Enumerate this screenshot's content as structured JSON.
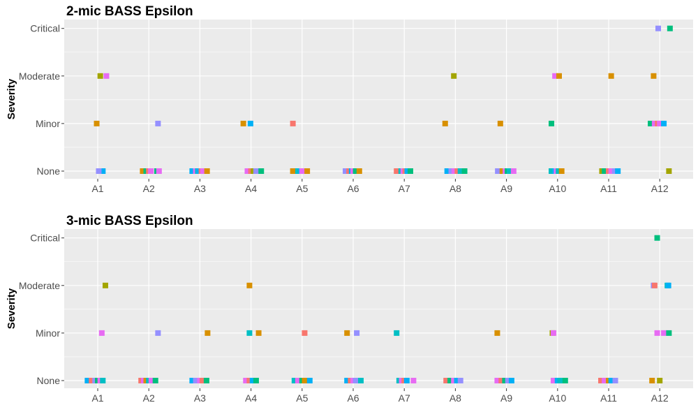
{
  "chart_data": [
    {
      "type": "scatter",
      "title": "2-mic BASS Epsilon",
      "xlabel": "",
      "ylabel": "Severity",
      "categories": [
        "A1",
        "A2",
        "A3",
        "A4",
        "A5",
        "A6",
        "A7",
        "A8",
        "A9",
        "A10",
        "A11",
        "A12"
      ],
      "levels": [
        "None",
        "Minor",
        "Moderate",
        "Critical"
      ],
      "grid": true,
      "points": [
        {
          "x": "A1",
          "y": "Moderate",
          "j": 0.05,
          "c": "#A3A500"
        },
        {
          "x": "A1",
          "y": "Moderate",
          "j": 0.17,
          "c": "#E76BF3"
        },
        {
          "x": "A1",
          "y": "Minor",
          "j": -0.02,
          "c": "#D89000"
        },
        {
          "x": "A1",
          "y": "None",
          "j": 0.04,
          "c": "#E76BF3"
        },
        {
          "x": "A1",
          "y": "None",
          "j": 0.1,
          "c": "#00B0F6"
        },
        {
          "x": "A1",
          "y": "None",
          "j": 0.02,
          "c": "#9590FF"
        },
        {
          "x": "A2",
          "y": "Minor",
          "j": 0.18,
          "c": "#9590FF"
        },
        {
          "x": "A2",
          "y": "None",
          "j": -0.12,
          "c": "#D89000"
        },
        {
          "x": "A2",
          "y": "None",
          "j": -0.05,
          "c": "#00BF7D"
        },
        {
          "x": "A2",
          "y": "None",
          "j": 0.0,
          "c": "#F8766D"
        },
        {
          "x": "A2",
          "y": "None",
          "j": 0.04,
          "c": "#E76BF3"
        },
        {
          "x": "A2",
          "y": "None",
          "j": 0.16,
          "c": "#00BF7D"
        },
        {
          "x": "A2",
          "y": "None",
          "j": 0.2,
          "c": "#E76BF3"
        },
        {
          "x": "A3",
          "y": "None",
          "j": -0.15,
          "c": "#00B0F6"
        },
        {
          "x": "A3",
          "y": "None",
          "j": -0.08,
          "c": "#E76BF3"
        },
        {
          "x": "A3",
          "y": "None",
          "j": -0.04,
          "c": "#00BFC4"
        },
        {
          "x": "A3",
          "y": "None",
          "j": -0.02,
          "c": "#00B0F6"
        },
        {
          "x": "A3",
          "y": "None",
          "j": 0.03,
          "c": "#F8766D"
        },
        {
          "x": "A3",
          "y": "None",
          "j": 0.06,
          "c": "#E76BF3"
        },
        {
          "x": "A3",
          "y": "None",
          "j": 0.14,
          "c": "#D89000"
        },
        {
          "x": "A4",
          "y": "Minor",
          "j": -0.15,
          "c": "#D89000"
        },
        {
          "x": "A4",
          "y": "Minor",
          "j": -0.01,
          "c": "#00B0F6"
        },
        {
          "x": "A4",
          "y": "None",
          "j": -0.07,
          "c": "#E76BF3"
        },
        {
          "x": "A4",
          "y": "None",
          "j": 0.0,
          "c": "#F8766D"
        },
        {
          "x": "A4",
          "y": "None",
          "j": 0.05,
          "c": "#A3A500"
        },
        {
          "x": "A4",
          "y": "None",
          "j": 0.1,
          "c": "#9590FF"
        },
        {
          "x": "A4",
          "y": "None",
          "j": 0.2,
          "c": "#00BF7D"
        },
        {
          "x": "A5",
          "y": "Minor",
          "j": -0.18,
          "c": "#F8766D"
        },
        {
          "x": "A5",
          "y": "None",
          "j": -0.18,
          "c": "#D89000"
        },
        {
          "x": "A5",
          "y": "None",
          "j": -0.08,
          "c": "#00BFC4"
        },
        {
          "x": "A5",
          "y": "None",
          "j": -0.02,
          "c": "#00B0F6"
        },
        {
          "x": "A5",
          "y": "None",
          "j": 0.0,
          "c": "#E76BF3"
        },
        {
          "x": "A5",
          "y": "None",
          "j": 0.1,
          "c": "#D89000"
        },
        {
          "x": "A6",
          "y": "None",
          "j": -0.15,
          "c": "#9590FF"
        },
        {
          "x": "A6",
          "y": "None",
          "j": -0.08,
          "c": "#F8766D"
        },
        {
          "x": "A6",
          "y": "None",
          "j": -0.03,
          "c": "#00B0F6"
        },
        {
          "x": "A6",
          "y": "None",
          "j": 0.0,
          "c": "#E76BF3"
        },
        {
          "x": "A6",
          "y": "None",
          "j": 0.05,
          "c": "#00BF7D"
        },
        {
          "x": "A6",
          "y": "None",
          "j": 0.12,
          "c": "#D89000"
        },
        {
          "x": "A7",
          "y": "None",
          "j": -0.15,
          "c": "#F8766D"
        },
        {
          "x": "A7",
          "y": "None",
          "j": -0.06,
          "c": "#00BFC4"
        },
        {
          "x": "A7",
          "y": "None",
          "j": -0.02,
          "c": "#E76BF3"
        },
        {
          "x": "A7",
          "y": "None",
          "j": 0.02,
          "c": "#F8766D"
        },
        {
          "x": "A7",
          "y": "None",
          "j": 0.06,
          "c": "#00B0F6"
        },
        {
          "x": "A7",
          "y": "None",
          "j": 0.12,
          "c": "#00BF7D"
        },
        {
          "x": "A8",
          "y": "Moderate",
          "j": -0.03,
          "c": "#A3A500"
        },
        {
          "x": "A8",
          "y": "Minor",
          "j": -0.2,
          "c": "#D89000"
        },
        {
          "x": "A8",
          "y": "None",
          "j": -0.16,
          "c": "#00B0F6"
        },
        {
          "x": "A8",
          "y": "None",
          "j": -0.08,
          "c": "#9590FF"
        },
        {
          "x": "A8",
          "y": "None",
          "j": -0.02,
          "c": "#E76BF3"
        },
        {
          "x": "A8",
          "y": "None",
          "j": 0.04,
          "c": "#F8766D"
        },
        {
          "x": "A8",
          "y": "None",
          "j": 0.1,
          "c": "#00BFC4"
        },
        {
          "x": "A8",
          "y": "None",
          "j": 0.18,
          "c": "#00BF7D"
        },
        {
          "x": "A9",
          "y": "Minor",
          "j": -0.12,
          "c": "#D89000"
        },
        {
          "x": "A9",
          "y": "None",
          "j": -0.17,
          "c": "#9590FF"
        },
        {
          "x": "A9",
          "y": "None",
          "j": -0.08,
          "c": "#D89000"
        },
        {
          "x": "A9",
          "y": "None",
          "j": -0.02,
          "c": "#E76BF3"
        },
        {
          "x": "A9",
          "y": "None",
          "j": 0.02,
          "c": "#00BF7D"
        },
        {
          "x": "A9",
          "y": "None",
          "j": 0.06,
          "c": "#00BFC4"
        },
        {
          "x": "A9",
          "y": "None",
          "j": 0.14,
          "c": "#E76BF3"
        },
        {
          "x": "A10",
          "y": "Moderate",
          "j": -0.05,
          "c": "#E76BF3"
        },
        {
          "x": "A10",
          "y": "Moderate",
          "j": 0.03,
          "c": "#D89000"
        },
        {
          "x": "A10",
          "y": "Minor",
          "j": -0.12,
          "c": "#00BF7D"
        },
        {
          "x": "A10",
          "y": "None",
          "j": -0.12,
          "c": "#00BFC4"
        },
        {
          "x": "A10",
          "y": "None",
          "j": -0.05,
          "c": "#00B0F6"
        },
        {
          "x": "A10",
          "y": "None",
          "j": -0.02,
          "c": "#E76BF3"
        },
        {
          "x": "A10",
          "y": "None",
          "j": 0.02,
          "c": "#00BFC4"
        },
        {
          "x": "A10",
          "y": "None",
          "j": 0.08,
          "c": "#D89000"
        },
        {
          "x": "A11",
          "y": "Moderate",
          "j": 0.05,
          "c": "#D89000"
        },
        {
          "x": "A11",
          "y": "None",
          "j": -0.13,
          "c": "#A3A500"
        },
        {
          "x": "A11",
          "y": "None",
          "j": -0.08,
          "c": "#00BF7D"
        },
        {
          "x": "A11",
          "y": "None",
          "j": 0.0,
          "c": "#F8766D"
        },
        {
          "x": "A11",
          "y": "None",
          "j": 0.05,
          "c": "#E76BF3"
        },
        {
          "x": "A11",
          "y": "None",
          "j": 0.12,
          "c": "#9590FF"
        },
        {
          "x": "A11",
          "y": "None",
          "j": 0.18,
          "c": "#00B0F6"
        },
        {
          "x": "A12",
          "y": "Critical",
          "j": -0.03,
          "c": "#9590FF"
        },
        {
          "x": "A12",
          "y": "Critical",
          "j": 0.2,
          "c": "#00BF7D"
        },
        {
          "x": "A12",
          "y": "Moderate",
          "j": -0.12,
          "c": "#D89000"
        },
        {
          "x": "A12",
          "y": "Minor",
          "j": -0.18,
          "c": "#00BF7D"
        },
        {
          "x": "A12",
          "y": "Minor",
          "j": -0.1,
          "c": "#E76BF3"
        },
        {
          "x": "A12",
          "y": "Minor",
          "j": -0.04,
          "c": "#F8766D"
        },
        {
          "x": "A12",
          "y": "Minor",
          "j": 0.0,
          "c": "#E76BF3"
        },
        {
          "x": "A12",
          "y": "Minor",
          "j": 0.08,
          "c": "#00B0F6"
        },
        {
          "x": "A12",
          "y": "None",
          "j": 0.18,
          "c": "#A3A500"
        }
      ]
    },
    {
      "type": "scatter",
      "title": "3-mic BASS Epsilon",
      "xlabel": "",
      "ylabel": "Severity",
      "categories": [
        "A1",
        "A2",
        "A3",
        "A4",
        "A5",
        "A6",
        "A7",
        "A8",
        "A9",
        "A10",
        "A11",
        "A12"
      ],
      "levels": [
        "None",
        "Minor",
        "Moderate",
        "Critical"
      ],
      "grid": true,
      "points": [
        {
          "x": "A1",
          "y": "Moderate",
          "j": 0.15,
          "c": "#A3A500"
        },
        {
          "x": "A1",
          "y": "Minor",
          "j": 0.08,
          "c": "#E76BF3"
        },
        {
          "x": "A1",
          "y": "None",
          "j": -0.2,
          "c": "#00B0F6"
        },
        {
          "x": "A1",
          "y": "None",
          "j": -0.12,
          "c": "#F8766D"
        },
        {
          "x": "A1",
          "y": "None",
          "j": -0.05,
          "c": "#9590FF"
        },
        {
          "x": "A1",
          "y": "None",
          "j": 0.0,
          "c": "#00BF7D"
        },
        {
          "x": "A1",
          "y": "None",
          "j": 0.05,
          "c": "#E76BF3"
        },
        {
          "x": "A1",
          "y": "None",
          "j": 0.1,
          "c": "#00BFC4"
        },
        {
          "x": "A2",
          "y": "Minor",
          "j": 0.18,
          "c": "#9590FF"
        },
        {
          "x": "A2",
          "y": "None",
          "j": -0.15,
          "c": "#F8766D"
        },
        {
          "x": "A2",
          "y": "None",
          "j": -0.1,
          "c": "#E76BF3"
        },
        {
          "x": "A2",
          "y": "None",
          "j": -0.05,
          "c": "#D89000"
        },
        {
          "x": "A2",
          "y": "None",
          "j": 0.0,
          "c": "#00BFC4"
        },
        {
          "x": "A2",
          "y": "None",
          "j": 0.05,
          "c": "#E76BF3"
        },
        {
          "x": "A2",
          "y": "None",
          "j": 0.13,
          "c": "#00BF7D"
        },
        {
          "x": "A3",
          "y": "Minor",
          "j": 0.15,
          "c": "#D89000"
        },
        {
          "x": "A3",
          "y": "None",
          "j": -0.15,
          "c": "#00B0F6"
        },
        {
          "x": "A3",
          "y": "None",
          "j": -0.08,
          "c": "#9590FF"
        },
        {
          "x": "A3",
          "y": "None",
          "j": 0.0,
          "c": "#E76BF3"
        },
        {
          "x": "A3",
          "y": "None",
          "j": 0.05,
          "c": "#F8766D"
        },
        {
          "x": "A3",
          "y": "None",
          "j": 0.13,
          "c": "#00BF7D"
        },
        {
          "x": "A4",
          "y": "Moderate",
          "j": -0.03,
          "c": "#D89000"
        },
        {
          "x": "A4",
          "y": "Minor",
          "j": -0.03,
          "c": "#00BFC4"
        },
        {
          "x": "A4",
          "y": "Minor",
          "j": 0.15,
          "c": "#D89000"
        },
        {
          "x": "A4",
          "y": "None",
          "j": -0.1,
          "c": "#E76BF3"
        },
        {
          "x": "A4",
          "y": "None",
          "j": -0.03,
          "c": "#F8766D"
        },
        {
          "x": "A4",
          "y": "None",
          "j": 0.03,
          "c": "#00B0F6"
        },
        {
          "x": "A4",
          "y": "None",
          "j": 0.1,
          "c": "#00BF7D"
        },
        {
          "x": "A5",
          "y": "Minor",
          "j": 0.05,
          "c": "#F8766D"
        },
        {
          "x": "A5",
          "y": "None",
          "j": -0.15,
          "c": "#00BFC4"
        },
        {
          "x": "A5",
          "y": "None",
          "j": -0.08,
          "c": "#E76BF3"
        },
        {
          "x": "A5",
          "y": "None",
          "j": 0.0,
          "c": "#00BF7D"
        },
        {
          "x": "A5",
          "y": "None",
          "j": 0.05,
          "c": "#D89000"
        },
        {
          "x": "A5",
          "y": "None",
          "j": 0.15,
          "c": "#00B0F6"
        },
        {
          "x": "A6",
          "y": "Minor",
          "j": -0.12,
          "c": "#D89000"
        },
        {
          "x": "A6",
          "y": "Minor",
          "j": 0.07,
          "c": "#9590FF"
        },
        {
          "x": "A6",
          "y": "None",
          "j": -0.12,
          "c": "#00B0F6"
        },
        {
          "x": "A6",
          "y": "None",
          "j": -0.05,
          "c": "#F8766D"
        },
        {
          "x": "A6",
          "y": "None",
          "j": 0.0,
          "c": "#E76BF3"
        },
        {
          "x": "A6",
          "y": "None",
          "j": 0.05,
          "c": "#9590FF"
        },
        {
          "x": "A6",
          "y": "None",
          "j": 0.15,
          "c": "#00BFC4"
        },
        {
          "x": "A7",
          "y": "Minor",
          "j": -0.15,
          "c": "#00BFC4"
        },
        {
          "x": "A7",
          "y": "None",
          "j": -0.1,
          "c": "#00BFC4"
        },
        {
          "x": "A7",
          "y": "None",
          "j": -0.05,
          "c": "#E76BF3"
        },
        {
          "x": "A7",
          "y": "None",
          "j": 0.0,
          "c": "#F8766D"
        },
        {
          "x": "A7",
          "y": "None",
          "j": 0.05,
          "c": "#00B0F6"
        },
        {
          "x": "A7",
          "y": "None",
          "j": 0.18,
          "c": "#E76BF3"
        },
        {
          "x": "A8",
          "y": "None",
          "j": -0.18,
          "c": "#F8766D"
        },
        {
          "x": "A8",
          "y": "None",
          "j": -0.1,
          "c": "#00BF7D"
        },
        {
          "x": "A8",
          "y": "None",
          "j": -0.03,
          "c": "#E76BF3"
        },
        {
          "x": "A8",
          "y": "None",
          "j": 0.03,
          "c": "#00B0F6"
        },
        {
          "x": "A8",
          "y": "None",
          "j": 0.1,
          "c": "#9590FF"
        },
        {
          "x": "A9",
          "y": "Minor",
          "j": -0.18,
          "c": "#D89000"
        },
        {
          "x": "A9",
          "y": "None",
          "j": -0.18,
          "c": "#E76BF3"
        },
        {
          "x": "A9",
          "y": "None",
          "j": -0.1,
          "c": "#F8766D"
        },
        {
          "x": "A9",
          "y": "None",
          "j": -0.03,
          "c": "#00BF7D"
        },
        {
          "x": "A9",
          "y": "None",
          "j": 0.03,
          "c": "#9590FF"
        },
        {
          "x": "A9",
          "y": "None",
          "j": 0.1,
          "c": "#00B0F6"
        },
        {
          "x": "A10",
          "y": "Minor",
          "j": -0.1,
          "c": "#A3A500"
        },
        {
          "x": "A10",
          "y": "Minor",
          "j": -0.08,
          "c": "#E76BF3"
        },
        {
          "x": "A10",
          "y": "None",
          "j": -0.08,
          "c": "#E76BF3"
        },
        {
          "x": "A10",
          "y": "None",
          "j": 0.0,
          "c": "#00B0F6"
        },
        {
          "x": "A10",
          "y": "None",
          "j": 0.05,
          "c": "#00BFC4"
        },
        {
          "x": "A10",
          "y": "None",
          "j": 0.15,
          "c": "#00BF7D"
        },
        {
          "x": "A11",
          "y": "None",
          "j": -0.15,
          "c": "#F8766D"
        },
        {
          "x": "A11",
          "y": "None",
          "j": -0.08,
          "c": "#E76BF3"
        },
        {
          "x": "A11",
          "y": "None",
          "j": 0.0,
          "c": "#D89000"
        },
        {
          "x": "A11",
          "y": "None",
          "j": 0.05,
          "c": "#00B0F6"
        },
        {
          "x": "A11",
          "y": "None",
          "j": 0.13,
          "c": "#9590FF"
        },
        {
          "x": "A12",
          "y": "Critical",
          "j": -0.05,
          "c": "#00BF7D"
        },
        {
          "x": "A12",
          "y": "Moderate",
          "j": -0.12,
          "c": "#9590FF"
        },
        {
          "x": "A12",
          "y": "Moderate",
          "j": -0.1,
          "c": "#F8766D"
        },
        {
          "x": "A12",
          "y": "Moderate",
          "j": 0.15,
          "c": "#00BFC4"
        },
        {
          "x": "A12",
          "y": "Moderate",
          "j": 0.17,
          "c": "#00B0F6"
        },
        {
          "x": "A12",
          "y": "Minor",
          "j": -0.05,
          "c": "#E76BF3"
        },
        {
          "x": "A12",
          "y": "Minor",
          "j": 0.08,
          "c": "#E76BF3"
        },
        {
          "x": "A12",
          "y": "Minor",
          "j": 0.18,
          "c": "#00BF7D"
        },
        {
          "x": "A12",
          "y": "None",
          "j": -0.15,
          "c": "#D89000"
        },
        {
          "x": "A12",
          "y": "None",
          "j": 0.0,
          "c": "#A3A500"
        }
      ]
    }
  ]
}
